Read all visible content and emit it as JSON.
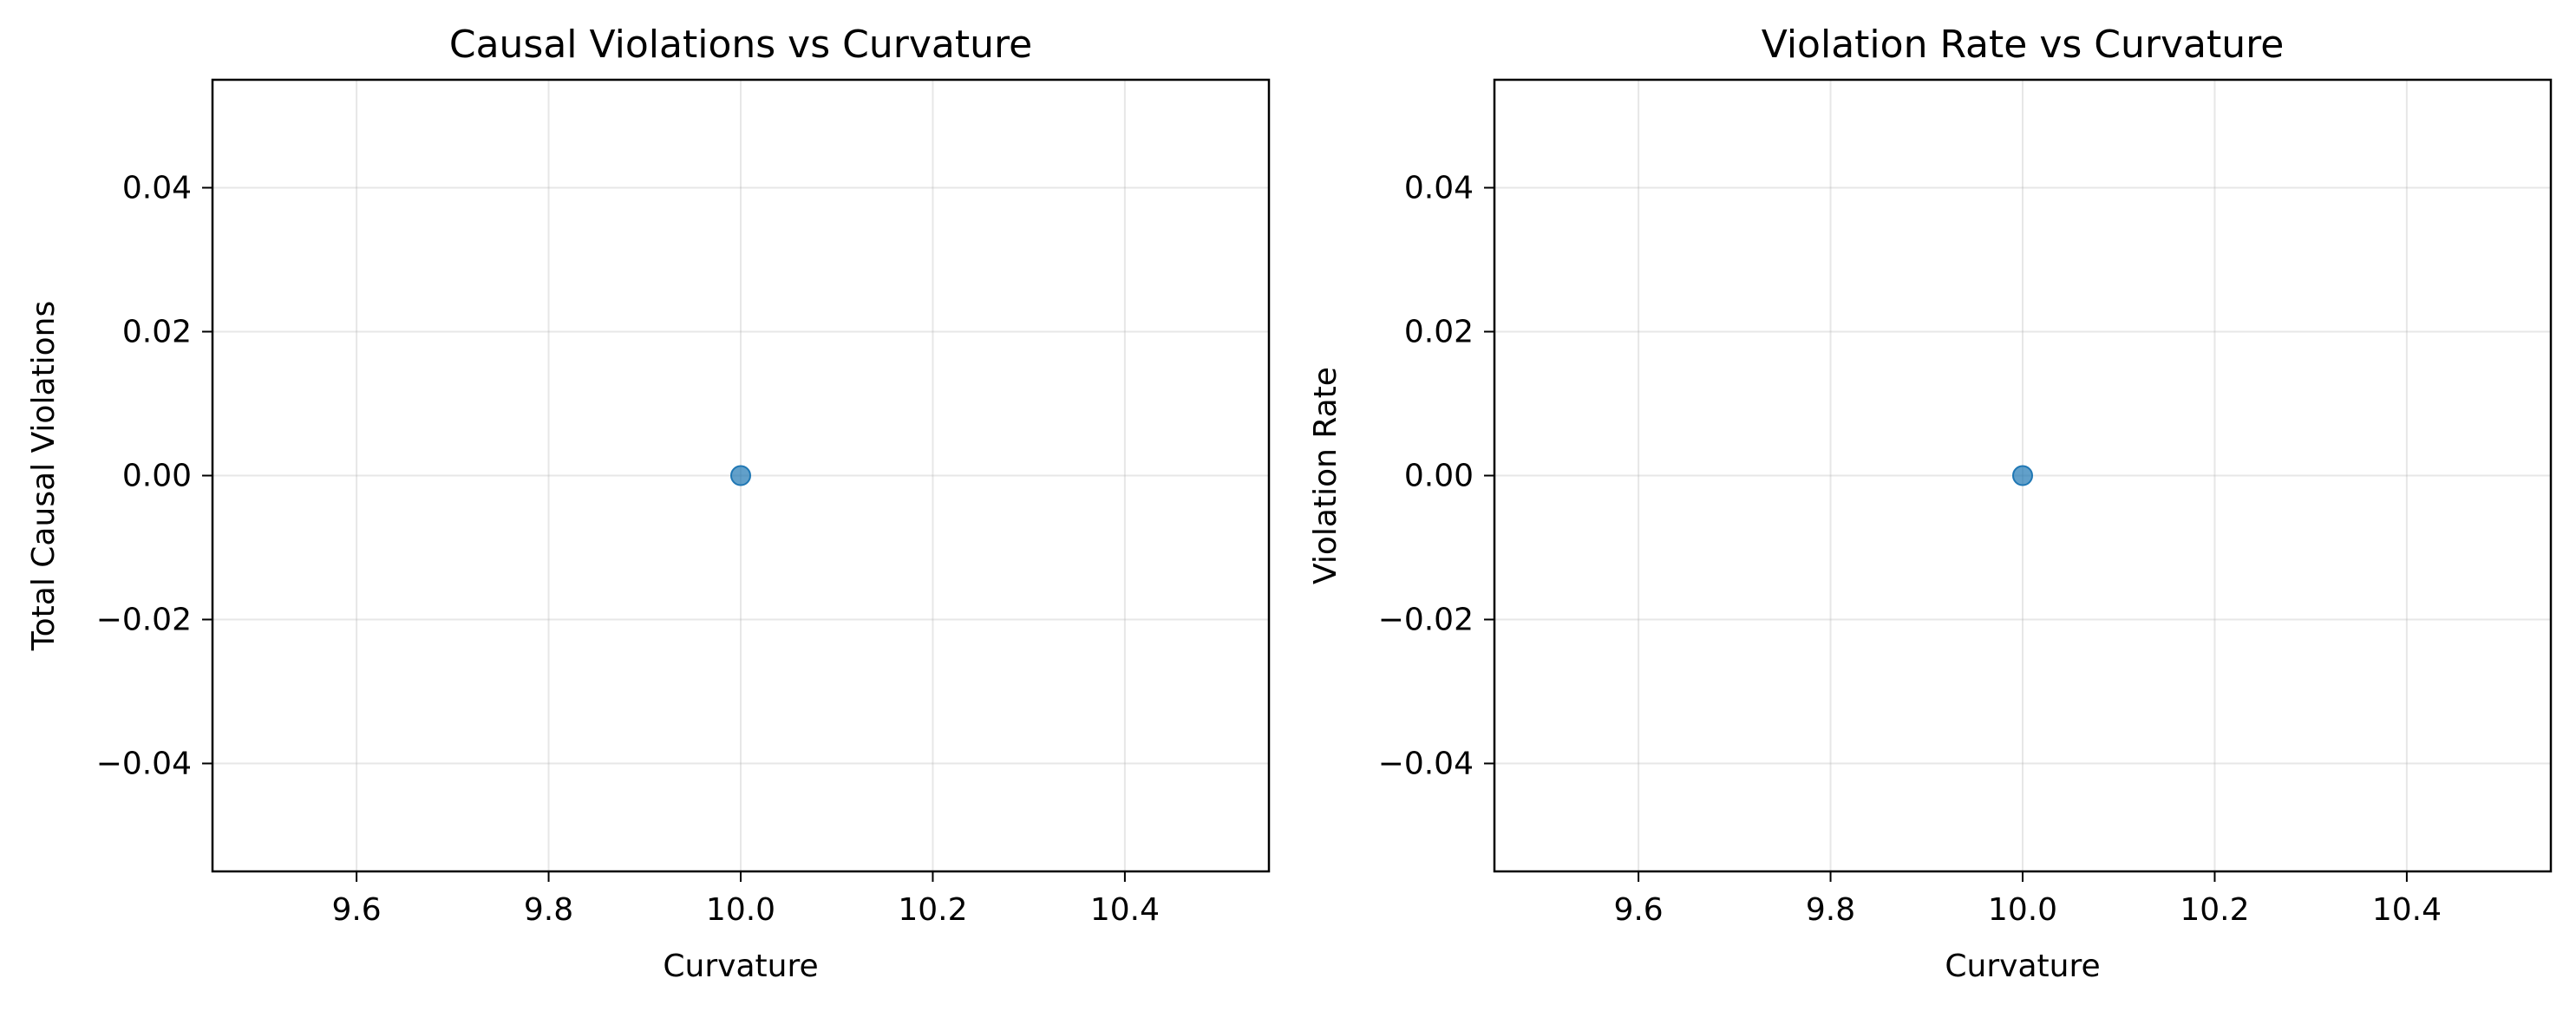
{
  "chart_data": [
    {
      "type": "scatter",
      "title": "Causal Violations vs Curvature",
      "xlabel": "Curvature",
      "ylabel": "Total Causal Violations",
      "xlim": [
        9.45,
        10.55
      ],
      "ylim": [
        -0.055,
        0.055
      ],
      "xticks": [
        9.6,
        9.8,
        10.0,
        10.2,
        10.4
      ],
      "xtick_labels": [
        "9.6",
        "9.8",
        "10.0",
        "10.2",
        "10.4"
      ],
      "yticks": [
        0.04,
        0.02,
        0.0,
        -0.02,
        -0.04
      ],
      "ytick_labels": [
        "0.04",
        "0.02",
        "0.00",
        "−0.02",
        "−0.04"
      ],
      "grid": true,
      "color": "#1f77b4",
      "points": [
        {
          "x": 10.0,
          "y": 0.0
        }
      ]
    },
    {
      "type": "scatter",
      "title": "Violation Rate vs Curvature",
      "xlabel": "Curvature",
      "ylabel": "Violation Rate",
      "xlim": [
        9.45,
        10.55
      ],
      "ylim": [
        -0.055,
        0.055
      ],
      "xticks": [
        9.6,
        9.8,
        10.0,
        10.2,
        10.4
      ],
      "xtick_labels": [
        "9.6",
        "9.8",
        "10.0",
        "10.2",
        "10.4"
      ],
      "yticks": [
        0.04,
        0.02,
        0.0,
        -0.02,
        -0.04
      ],
      "ytick_labels": [
        "0.04",
        "0.02",
        "0.00",
        "−0.02",
        "−0.04"
      ],
      "grid": true,
      "color": "#1f77b4",
      "points": [
        {
          "x": 10.0,
          "y": 0.0
        }
      ]
    }
  ]
}
